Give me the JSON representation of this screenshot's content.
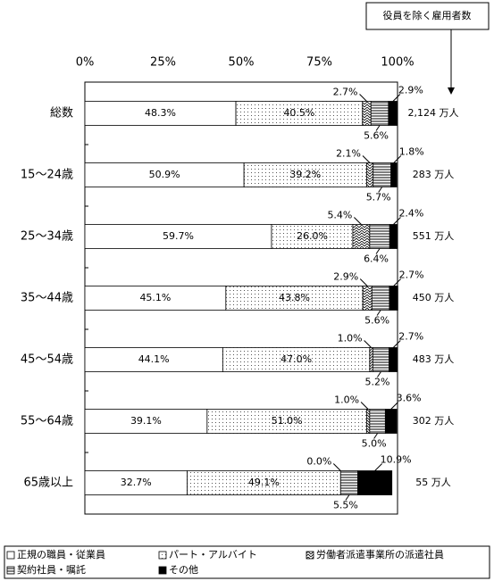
{
  "chart_data": {
    "type": "stacked-bar-horizontal",
    "header_note": "役員を除く雇用者数",
    "categories": [
      "総数",
      "15～24歳",
      "25～34歳",
      "35～44歳",
      "45～54歳",
      "55～64歳",
      "65歳以上"
    ],
    "totals": [
      "2,124 万人",
      "283 万人",
      "551 万人",
      "450 万人",
      "483 万人",
      "302 万人",
      "55 万人"
    ],
    "xlim": [
      0,
      100
    ],
    "xticks": [
      {
        "value": 0,
        "label": "0%"
      },
      {
        "value": 25,
        "label": "25%"
      },
      {
        "value": 50,
        "label": "50%"
      },
      {
        "value": 75,
        "label": "75%"
      },
      {
        "value": 100,
        "label": "100%"
      }
    ],
    "series": [
      {
        "name": "正規の職員・従業員",
        "color": "#ffffff",
        "pattern": "none",
        "values": [
          48.3,
          50.9,
          59.7,
          45.1,
          44.1,
          39.1,
          32.7
        ],
        "value_labels": [
          "48.3%",
          "50.9%",
          "59.7%",
          "45.1%",
          "44.1%",
          "39.1%",
          "32.7%"
        ]
      },
      {
        "name": "パート・アルバイト",
        "color": "#ffffff",
        "pattern": "dots",
        "values": [
          40.5,
          39.2,
          26.0,
          43.8,
          47.0,
          51.0,
          49.1
        ],
        "value_labels": [
          "40.5%",
          "39.2%",
          "26.0%",
          "43.8%",
          "47.0%",
          "51.0%",
          "49.1%"
        ]
      },
      {
        "name": "労働者派遣事業所の派遣社員",
        "color": "#ffffff",
        "pattern": "waves",
        "values": [
          2.7,
          2.1,
          5.4,
          2.9,
          1.0,
          1.0,
          0.0
        ],
        "value_labels": [
          "2.7%",
          "2.1%",
          "5.4%",
          "2.9%",
          "1.0%",
          "1.0%",
          "0.0%"
        ]
      },
      {
        "name": "契約社員・嘱託",
        "color": "#ffffff",
        "pattern": "hlines",
        "values": [
          5.6,
          5.7,
          6.4,
          5.6,
          5.2,
          5.0,
          5.5
        ],
        "value_labels": [
          "5.6%",
          "5.7%",
          "6.4%",
          "5.6%",
          "5.2%",
          "5.0%",
          "5.5%"
        ]
      },
      {
        "name": "その他",
        "color": "#000000",
        "pattern": "none",
        "values": [
          2.9,
          1.8,
          2.4,
          2.7,
          2.7,
          3.6,
          10.9
        ],
        "value_labels": [
          "2.9%",
          "1.8%",
          "2.4%",
          "2.7%",
          "2.7%",
          "3.6%",
          "10.9%"
        ]
      }
    ]
  }
}
